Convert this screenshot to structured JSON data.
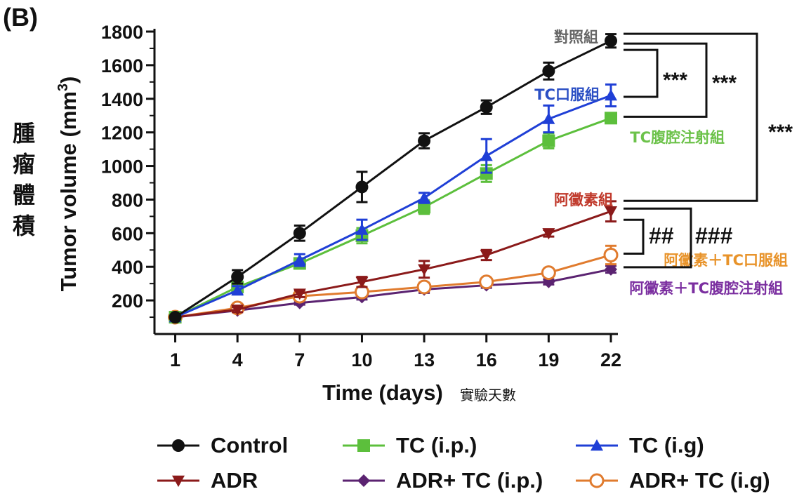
{
  "panel_label": "(B)",
  "cn_ylabel": [
    "腫",
    "瘤",
    "體",
    "積"
  ],
  "cn_xlabel": "實驗天數",
  "chart_data": {
    "type": "line",
    "title": "",
    "xlabel": "Time (days)",
    "ylabel": "Tumor volume (mm3)",
    "x": [
      1,
      4,
      7,
      10,
      13,
      16,
      19,
      22
    ],
    "x_ticks": [
      "1",
      "4",
      "7",
      "10",
      "13",
      "16",
      "19",
      "22"
    ],
    "y_ticks": [
      "200",
      "400",
      "600",
      "800",
      "1000",
      "1200",
      "1400",
      "1600",
      "1800"
    ],
    "xlim": [
      0,
      22
    ],
    "ylim": [
      0,
      1800
    ],
    "grid": false,
    "legend_position": "bottom",
    "series": [
      {
        "name": "Control",
        "color": "#111111",
        "marker": "circle",
        "values": [
          100,
          340,
          600,
          875,
          1150,
          1350,
          1565,
          1745
        ],
        "errors": [
          0,
          40,
          45,
          90,
          45,
          40,
          50,
          40
        ],
        "annotation": "對照組",
        "annotation_color": "#666666"
      },
      {
        "name": "TC (i.p.)",
        "color": "#5cbf3c",
        "marker": "square",
        "values": [
          100,
          280,
          420,
          585,
          755,
          955,
          1150,
          1285
        ],
        "errors": [
          0,
          20,
          25,
          45,
          40,
          50,
          45,
          20
        ],
        "annotation": "TC腹腔注射組",
        "annotation_color": "#6cc24a"
      },
      {
        "name": "TC (i.g)",
        "color": "#1f3fd6",
        "marker": "triangle",
        "values": [
          100,
          260,
          440,
          620,
          810,
          1060,
          1280,
          1420
        ],
        "errors": [
          0,
          25,
          35,
          60,
          30,
          100,
          80,
          65
        ],
        "annotation": "TC口服組",
        "annotation_color": "#2b4fc4"
      },
      {
        "name": "ADR",
        "color": "#8b1a1a",
        "marker": "triangle-down",
        "values": [
          100,
          145,
          240,
          310,
          385,
          470,
          600,
          730
        ],
        "errors": [
          0,
          15,
          20,
          30,
          50,
          30,
          20,
          60
        ],
        "annotation": "阿黴素組",
        "annotation_color": "#c0392b"
      },
      {
        "name": "ADR+ TC (i.p.)",
        "color": "#5b2371",
        "marker": "diamond",
        "values": [
          100,
          140,
          185,
          220,
          265,
          290,
          310,
          385
        ],
        "errors": [
          0,
          10,
          10,
          15,
          20,
          15,
          15,
          20
        ],
        "annotation": "阿黴素＋TC腹腔注射組",
        "annotation_color": "#7b2fa0"
      },
      {
        "name": "ADR+ TC (i.g)",
        "color": "#e07b2e",
        "marker": "circle-open",
        "values": [
          100,
          155,
          225,
          250,
          280,
          310,
          365,
          470
        ],
        "errors": [
          0,
          15,
          20,
          25,
          25,
          20,
          20,
          55
        ],
        "annotation": "阿黴素＋TC口服組",
        "annotation_color": "#e8932a"
      }
    ],
    "significance": [
      {
        "label": "***"
      },
      {
        "label": "***"
      },
      {
        "label": "***"
      },
      {
        "label": "##"
      },
      {
        "label": "###"
      }
    ]
  }
}
